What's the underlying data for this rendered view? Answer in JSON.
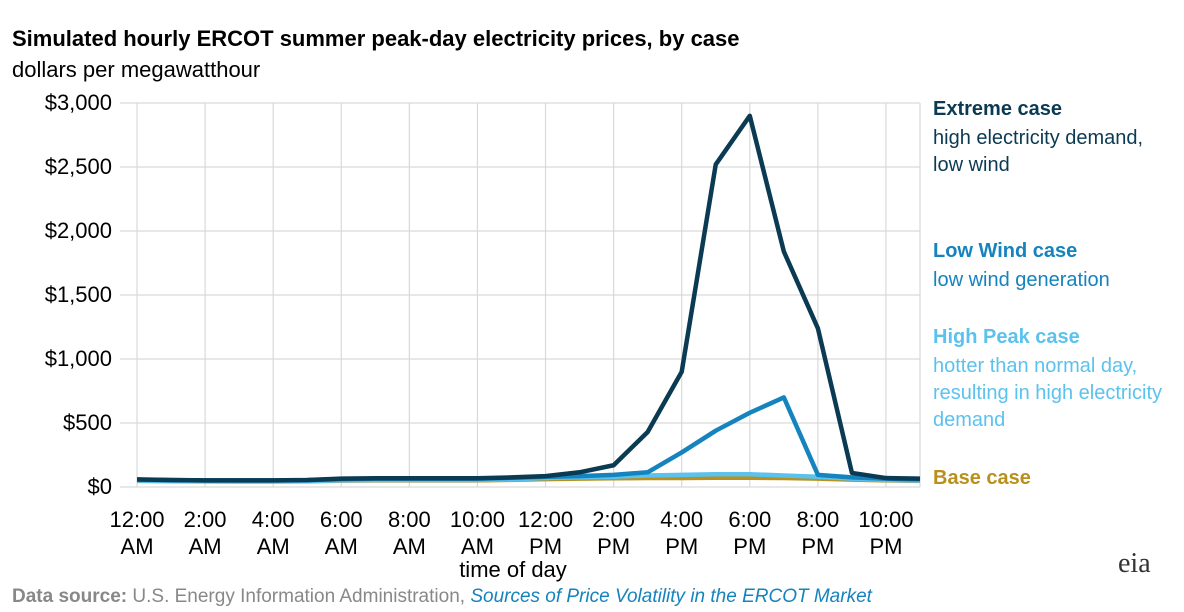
{
  "chart_data": {
    "type": "line",
    "title": "Simulated hourly ERCOT summer peak-day electricity prices, by case",
    "subtitle": "dollars per megawatthour",
    "xlabel": "time of day",
    "x": [
      0,
      1,
      2,
      3,
      4,
      5,
      6,
      7,
      8,
      9,
      10,
      11,
      12,
      13,
      14,
      15,
      16,
      17,
      18,
      19,
      20,
      21,
      22,
      23
    ],
    "xlim": [
      -0.5,
      23
    ],
    "xticks": [
      {
        "value": 0,
        "label": "12:00 AM"
      },
      {
        "value": 2,
        "label": "2:00 AM"
      },
      {
        "value": 4,
        "label": "4:00 AM"
      },
      {
        "value": 6,
        "label": "6:00 AM"
      },
      {
        "value": 8,
        "label": "8:00 AM"
      },
      {
        "value": 10,
        "label": "10:00 AM"
      },
      {
        "value": 12,
        "label": "12:00 PM"
      },
      {
        "value": 14,
        "label": "2:00 PM"
      },
      {
        "value": 16,
        "label": "4:00 PM"
      },
      {
        "value": 18,
        "label": "6:00 PM"
      },
      {
        "value": 20,
        "label": "8:00 PM"
      },
      {
        "value": 22,
        "label": "10:00 PM"
      }
    ],
    "ylim": [
      0,
      3000
    ],
    "yticks": [
      {
        "value": 0,
        "label": "$0"
      },
      {
        "value": 500,
        "label": "$500"
      },
      {
        "value": 1000,
        "label": "$1,000"
      },
      {
        "value": 1500,
        "label": "$1,500"
      },
      {
        "value": 2000,
        "label": "$2,000"
      },
      {
        "value": 2500,
        "label": "$2,500"
      },
      {
        "value": 3000,
        "label": "$3,000"
      }
    ],
    "grid": true,
    "series": [
      {
        "name": "Extreme case",
        "description": "high electricity demand, low wind",
        "color": "#0b3a53",
        "values": [
          60,
          55,
          52,
          52,
          52,
          55,
          65,
          68,
          68,
          68,
          68,
          75,
          85,
          115,
          170,
          430,
          900,
          2520,
          2900,
          1840,
          1240,
          110,
          70,
          65
        ]
      },
      {
        "name": "Low Wind case",
        "description": "low wind generation",
        "color": "#1583bd",
        "values": [
          58,
          54,
          52,
          52,
          52,
          54,
          62,
          65,
          65,
          65,
          65,
          72,
          80,
          85,
          95,
          115,
          270,
          440,
          580,
          700,
          95,
          75,
          65,
          60
        ]
      },
      {
        "name": "High Peak case",
        "description": "hotter than normal day, resulting in high electricity demand",
        "color": "#5bc2ee",
        "values": [
          50,
          48,
          46,
          45,
          45,
          47,
          52,
          55,
          55,
          55,
          55,
          60,
          70,
          75,
          80,
          90,
          95,
          100,
          100,
          90,
          80,
          65,
          55,
          50
        ]
      },
      {
        "name": "Base case",
        "color": "#b8901b",
        "values": [
          48,
          46,
          44,
          43,
          43,
          45,
          50,
          52,
          52,
          52,
          52,
          56,
          62,
          65,
          68,
          70,
          70,
          72,
          72,
          70,
          65,
          58,
          52,
          48
        ]
      }
    ],
    "source": {
      "label": "Data source:",
      "text": "U.S. Energy Information Administration,",
      "link": "Sources of Price Volatility in the ERCOT Market"
    },
    "logo": "eia"
  }
}
